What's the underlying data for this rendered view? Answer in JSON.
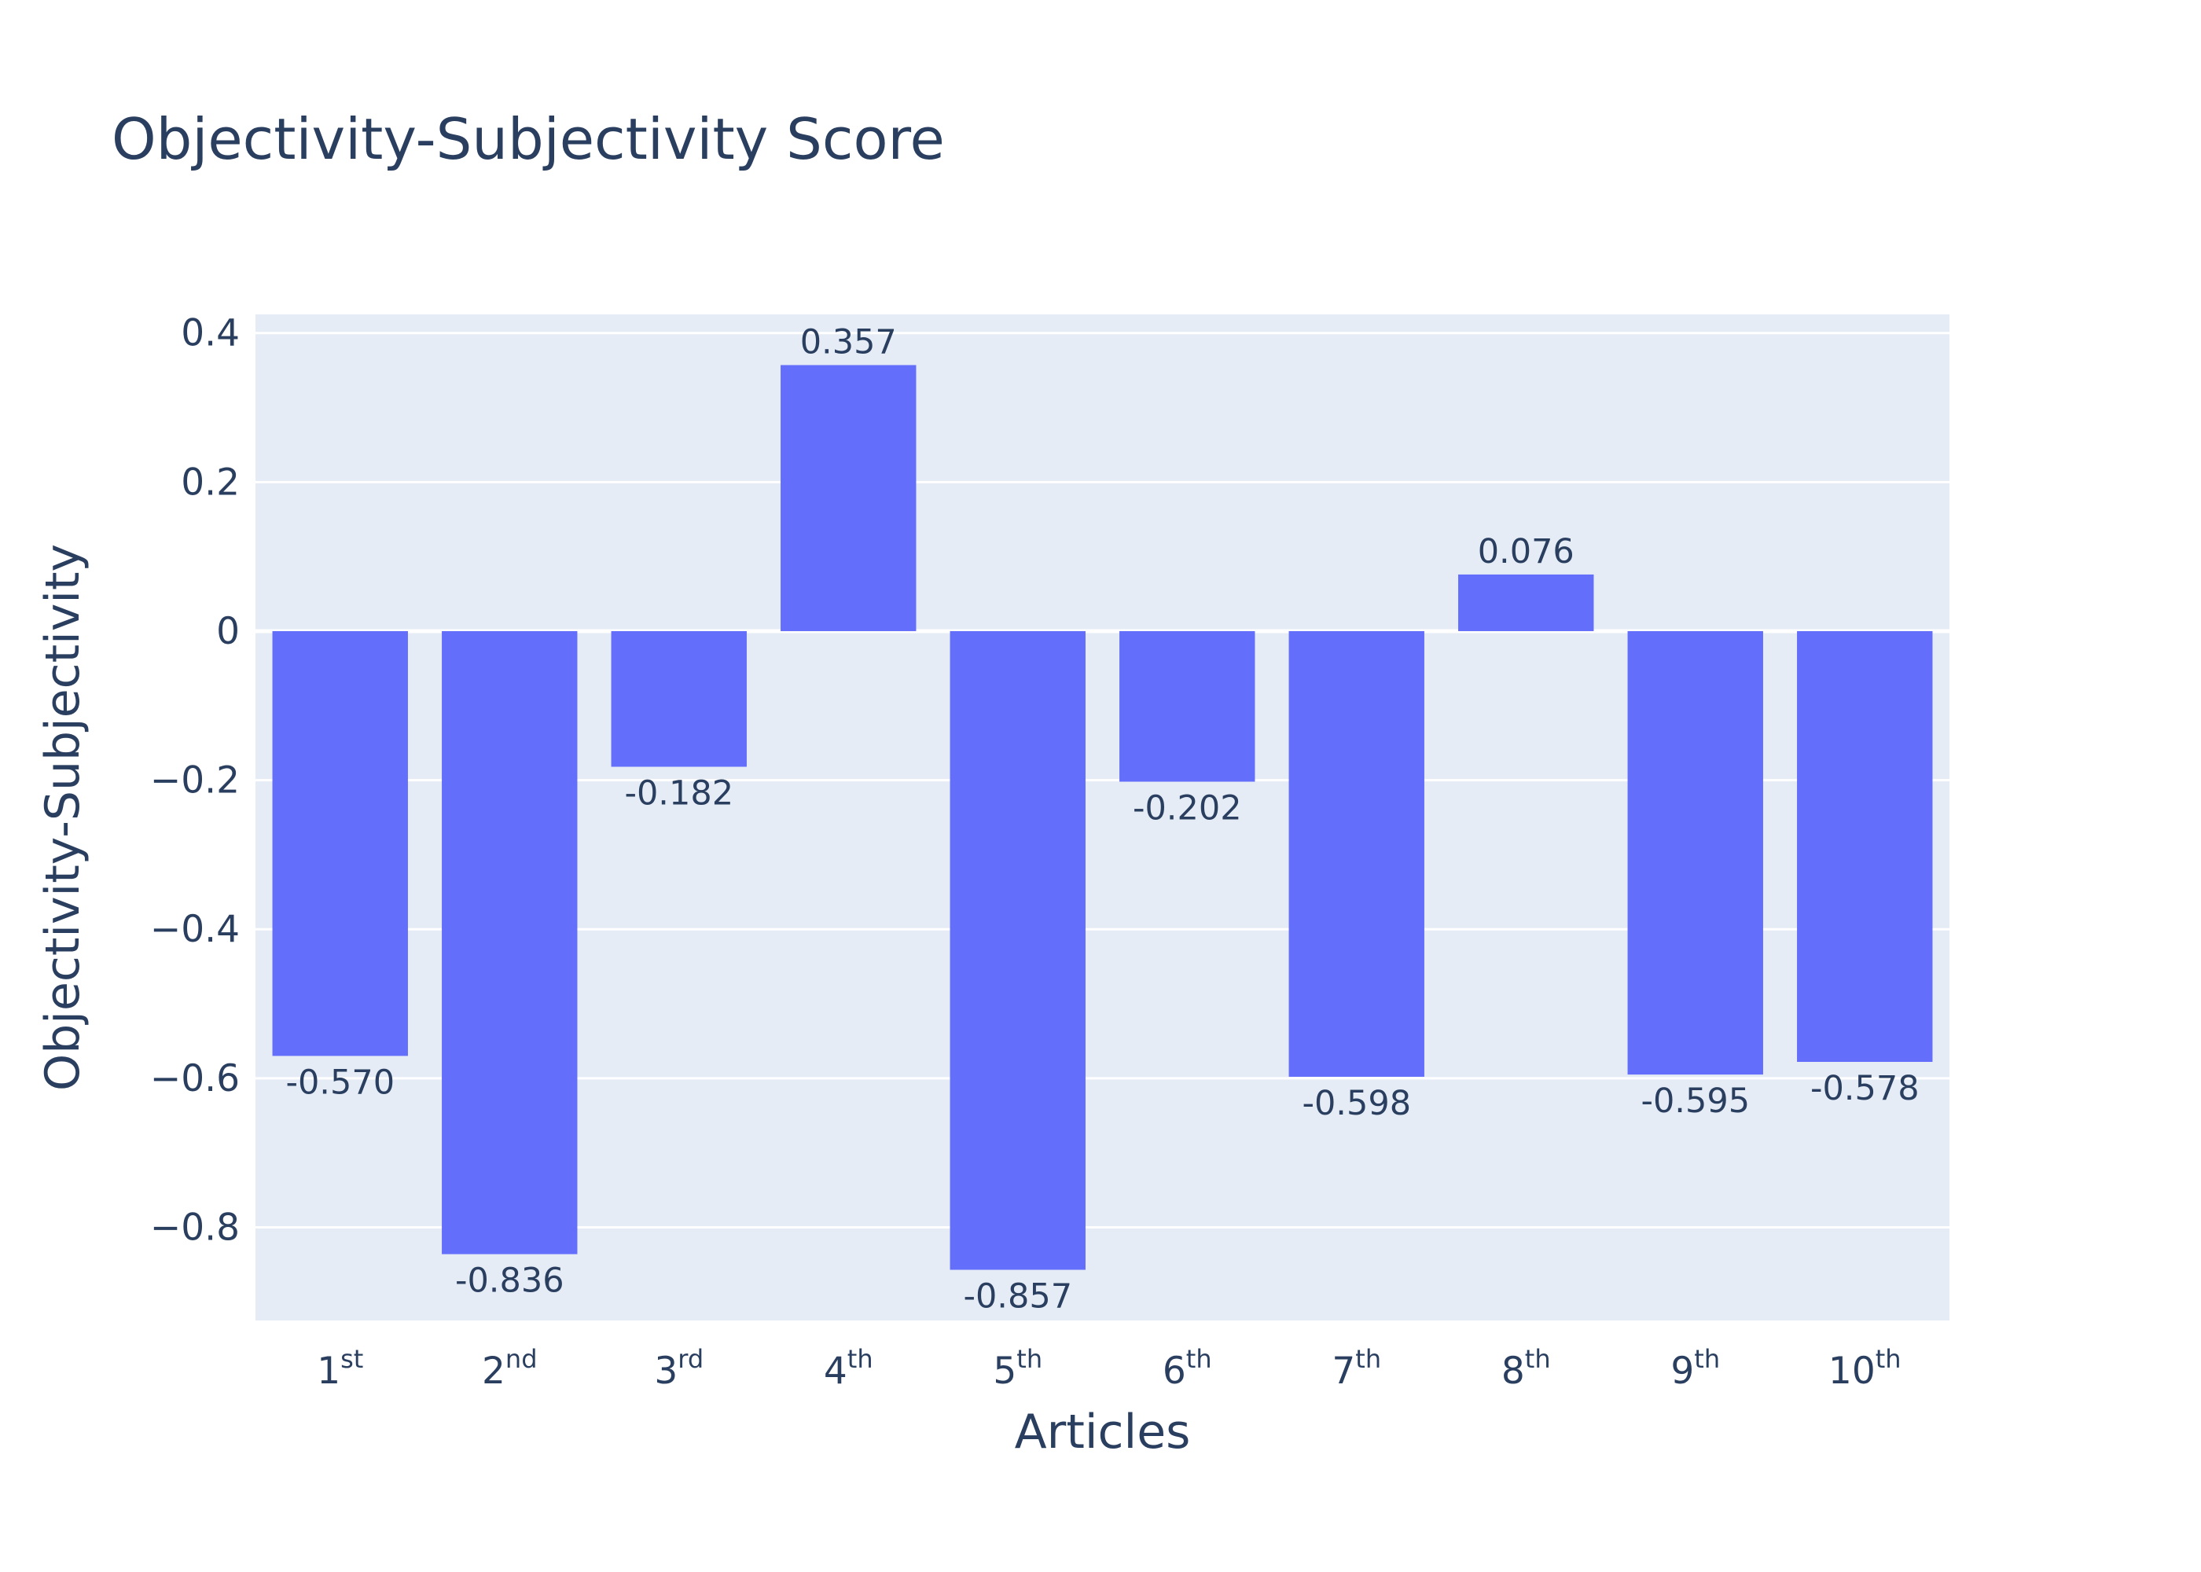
{
  "chart_data": {
    "type": "bar",
    "title": "Objectivity-Subjectivity Score",
    "xlabel": "Articles",
    "ylabel": "Objectivity-Subjectivity",
    "categories": [
      {
        "base": "1",
        "sup": "st"
      },
      {
        "base": "2",
        "sup": "nd"
      },
      {
        "base": "3",
        "sup": "rd"
      },
      {
        "base": "4",
        "sup": "th"
      },
      {
        "base": "5",
        "sup": "th"
      },
      {
        "base": "6",
        "sup": "th"
      },
      {
        "base": "7",
        "sup": "th"
      },
      {
        "base": "8",
        "sup": "th"
      },
      {
        "base": "9",
        "sup": "th"
      },
      {
        "base": "10",
        "sup": "th"
      }
    ],
    "values": [
      -0.57,
      -0.836,
      -0.182,
      0.357,
      -0.857,
      -0.202,
      -0.598,
      0.076,
      -0.595,
      -0.578
    ],
    "value_labels": [
      "-0.570",
      "-0.836",
      "-0.182",
      "0.357",
      "-0.857",
      "-0.202",
      "-0.598",
      "0.076",
      "-0.595",
      "-0.578"
    ],
    "ylim": [
      -0.925,
      0.425
    ],
    "yticks": [
      0.4,
      0.2,
      0,
      -0.2,
      -0.4,
      -0.6,
      -0.8
    ],
    "ytick_labels": [
      "0.4",
      "0.2",
      "0",
      "−0.2",
      "−0.4",
      "−0.6",
      "−0.8"
    ],
    "grid": true,
    "colors": {
      "bar": "#636efa",
      "plot_background": "#e5ecf6",
      "grid": "#ffffff",
      "text": "#2a3f5f"
    }
  }
}
